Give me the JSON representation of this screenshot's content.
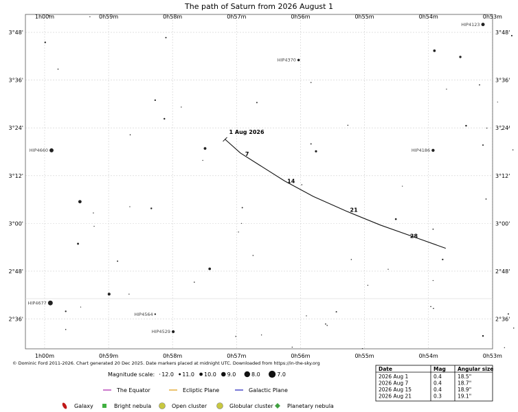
{
  "chart_data": {
    "type": "scatter",
    "title": "The path of Saturn from 2026 August 1",
    "x_axis": {
      "unit": "right ascension",
      "range_h": [
        1.005,
        0.8833
      ],
      "ticks": [
        {
          "value": 1.0,
          "label": "1h00m"
        },
        {
          "value": 0.98333,
          "label": "0h59m"
        },
        {
          "value": 0.96667,
          "label": "0h58m"
        },
        {
          "value": 0.95,
          "label": "0h57m"
        },
        {
          "value": 0.93333,
          "label": "0h56m"
        },
        {
          "value": 0.91667,
          "label": "0h55m"
        },
        {
          "value": 0.9,
          "label": "0h54m"
        },
        {
          "value": 0.88333,
          "label": "0h53m"
        }
      ]
    },
    "y_axis": {
      "unit": "declination (degrees)",
      "range": [
        2.475,
        3.875
      ],
      "ticks": [
        {
          "value": 3.8,
          "label": "3°48'"
        },
        {
          "value": 3.6,
          "label": "3°36'"
        },
        {
          "value": 3.4,
          "label": "3°24'"
        },
        {
          "value": 3.2,
          "label": "3°12'"
        },
        {
          "value": 3.0,
          "label": "3°00'"
        },
        {
          "value": 2.8,
          "label": "2°48'"
        },
        {
          "value": 2.6,
          "label": "2°36'"
        }
      ]
    },
    "grid": true,
    "path": {
      "name": "Saturn",
      "points": [
        {
          "ra_h": 0.953,
          "dec": 3.352
        },
        {
          "ra_h": 0.949,
          "dec": 3.295
        },
        {
          "ra_h": 0.944,
          "dec": 3.244
        },
        {
          "ra_h": 0.9375,
          "dec": 3.178
        },
        {
          "ra_h": 0.93,
          "dec": 3.113
        },
        {
          "ra_h": 0.9215,
          "dec": 3.052
        },
        {
          "ra_h": 0.9125,
          "dec": 2.993
        },
        {
          "ra_h": 0.903,
          "dec": 2.939
        },
        {
          "ra_h": 0.8955,
          "dec": 2.896
        }
      ],
      "date_markers": [
        {
          "label": "1 Aug 2026",
          "ra_h": 0.953,
          "dec": 3.352
        },
        {
          "label": "7",
          "ra_h": 0.949,
          "dec": 3.295
        },
        {
          "label": "14",
          "ra_h": 0.9375,
          "dec": 3.178
        },
        {
          "label": "21",
          "ra_h": 0.9215,
          "dec": 3.052
        },
        {
          "label": "28",
          "ra_h": 0.903,
          "dec": 2.939
        }
      ]
    },
    "stars": [
      {
        "ra_h": 0.99885,
        "dec": 3.87,
        "mag": 11.8
      },
      {
        "ra_h": 0.9882,
        "dec": 3.865,
        "mag": 11.9
      },
      {
        "ra_h": 0.9653,
        "dec": 3.861,
        "mag": 11.9
      },
      {
        "ra_h": 0.9684,
        "dec": 3.778,
        "mag": 11.5
      },
      {
        "ra_h": 0.99985,
        "dec": 3.758,
        "mag": 11.4
      },
      {
        "ra_h": 0.89845,
        "dec": 3.723,
        "mag": 10.6
      },
      {
        "ra_h": 0.8917,
        "dec": 3.697,
        "mag": 10.8
      },
      {
        "ra_h": 0.8858,
        "dec": 3.833,
        "mag": 9.9,
        "name": "HIP4123"
      },
      {
        "ra_h": 0.8783,
        "dec": 3.786,
        "mag": 11.5
      },
      {
        "ra_h": 0.8765,
        "dec": 3.77,
        "mag": 11.7
      },
      {
        "ra_h": 0.8747,
        "dec": 3.714,
        "mag": 12.0
      },
      {
        "ra_h": 0.9965,
        "dec": 3.646,
        "mag": 11.8
      },
      {
        "ra_h": 0.93383,
        "dec": 3.684,
        "mag": 10.7,
        "name": "HIP4370"
      },
      {
        "ra_h": 0.9306,
        "dec": 3.59,
        "mag": 11.8
      },
      {
        "ra_h": 0.8953,
        "dec": 3.562,
        "mag": 11.9
      },
      {
        "ra_h": 0.8867,
        "dec": 3.58,
        "mag": 11.7
      },
      {
        "ra_h": 0.9712,
        "dec": 3.516,
        "mag": 11.4
      },
      {
        "ra_h": 0.9644,
        "dec": 3.487,
        "mag": 11.9
      },
      {
        "ra_h": 0.9447,
        "dec": 3.506,
        "mag": 11.6
      },
      {
        "ra_h": 0.882,
        "dec": 3.508,
        "mag": 12.0
      },
      {
        "ra_h": 0.9688,
        "dec": 3.438,
        "mag": 11.3
      },
      {
        "ra_h": 0.921,
        "dec": 3.411,
        "mag": 11.8
      },
      {
        "ra_h": 0.8902,
        "dec": 3.409,
        "mag": 11.3
      },
      {
        "ra_h": 0.8848,
        "dec": 3.399,
        "mag": 11.9
      },
      {
        "ra_h": 0.881,
        "dec": 3.393,
        "mag": 11.9
      },
      {
        "ra_h": 0.879,
        "dec": 3.401,
        "mag": 11.8
      },
      {
        "ra_h": 0.9777,
        "dec": 3.371,
        "mag": 11.8
      },
      {
        "ra_h": 0.9982,
        "dec": 3.306,
        "mag": 9.4,
        "name": "HIP4660"
      },
      {
        "ra_h": 0.9582,
        "dec": 3.314,
        "mag": 10.5
      },
      {
        "ra_h": 0.9588,
        "dec": 3.264,
        "mag": 11.9
      },
      {
        "ra_h": 0.9306,
        "dec": 3.333,
        "mag": 11.6
      },
      {
        "ra_h": 0.9293,
        "dec": 3.302,
        "mag": 10.9
      },
      {
        "ra_h": 0.8858,
        "dec": 3.328,
        "mag": 11.5
      },
      {
        "ra_h": 0.8988,
        "dec": 3.306,
        "mag": 10.2,
        "name": "HIP4186"
      },
      {
        "ra_h": 0.878,
        "dec": 3.308,
        "mag": 11.8
      },
      {
        "ra_h": 0.8753,
        "dec": 3.269,
        "mag": 11.9
      },
      {
        "ra_h": 0.8748,
        "dec": 3.221,
        "mag": 10.6
      },
      {
        "ra_h": 0.933,
        "dec": 3.162,
        "mag": 11.8
      },
      {
        "ra_h": 0.9068,
        "dec": 3.156,
        "mag": 12.0
      },
      {
        "ra_h": 0.885,
        "dec": 3.102,
        "mag": 11.7
      },
      {
        "ra_h": 0.9908,
        "dec": 3.091,
        "mag": 10.0
      },
      {
        "ra_h": 0.9873,
        "dec": 3.044,
        "mag": 11.9
      },
      {
        "ra_h": 0.9778,
        "dec": 3.07,
        "mag": 11.9
      },
      {
        "ra_h": 0.9722,
        "dec": 3.063,
        "mag": 11.3
      },
      {
        "ra_h": 0.9871,
        "dec": 2.988,
        "mag": 11.9
      },
      {
        "ra_h": 0.9485,
        "dec": 3.066,
        "mag": 11.6
      },
      {
        "ra_h": 0.9487,
        "dec": 3.0,
        "mag": 12.0
      },
      {
        "ra_h": 0.9495,
        "dec": 2.964,
        "mag": 11.9
      },
      {
        "ra_h": 0.9085,
        "dec": 3.018,
        "mag": 11.2
      },
      {
        "ra_h": 0.8988,
        "dec": 2.976,
        "mag": 11.7
      },
      {
        "ra_h": 0.9913,
        "dec": 2.915,
        "mag": 11.1
      },
      {
        "ra_h": 0.9457,
        "dec": 2.866,
        "mag": 11.8
      },
      {
        "ra_h": 0.9201,
        "dec": 2.849,
        "mag": 11.8
      },
      {
        "ra_h": 0.8963,
        "dec": 2.849,
        "mag": 11.4
      },
      {
        "ra_h": 0.981,
        "dec": 2.842,
        "mag": 11.6
      },
      {
        "ra_h": 0.957,
        "dec": 2.81,
        "mag": 10.6
      },
      {
        "ra_h": 0.9105,
        "dec": 2.808,
        "mag": 11.9
      },
      {
        "ra_h": 0.8745,
        "dec": 2.779,
        "mag": 11.6
      },
      {
        "ra_h": 0.961,
        "dec": 2.754,
        "mag": 11.8
      },
      {
        "ra_h": 0.9158,
        "dec": 2.741,
        "mag": 11.9
      },
      {
        "ra_h": 0.8988,
        "dec": 2.761,
        "mag": 11.9
      },
      {
        "ra_h": 0.9832,
        "dec": 2.704,
        "mag": 10.4
      },
      {
        "ra_h": 0.978,
        "dec": 2.704,
        "mag": 11.9
      },
      {
        "ra_h": 0.9985,
        "dec": 2.667,
        "mag": 8.8,
        "name": "HIP4677"
      },
      {
        "ra_h": 0.9945,
        "dec": 2.632,
        "mag": 11.4
      },
      {
        "ra_h": 0.9906,
        "dec": 2.65,
        "mag": 12.0
      },
      {
        "ra_h": 0.9712,
        "dec": 2.62,
        "mag": 11.3,
        "name": "HIP4564"
      },
      {
        "ra_h": 0.924,
        "dec": 2.63,
        "mag": 11.6
      },
      {
        "ra_h": 0.9318,
        "dec": 2.613,
        "mag": 11.9
      },
      {
        "ra_h": 0.8994,
        "dec": 2.652,
        "mag": 11.8
      },
      {
        "ra_h": 0.8987,
        "dec": 2.644,
        "mag": 11.8
      },
      {
        "ra_h": 0.8792,
        "dec": 2.621,
        "mag": 11.6
      },
      {
        "ra_h": 0.9268,
        "dec": 2.579,
        "mag": 11.7
      },
      {
        "ra_h": 0.9264,
        "dec": 2.573,
        "mag": 11.8
      },
      {
        "ra_h": 0.8778,
        "dec": 2.562,
        "mag": 11.8
      },
      {
        "ra_h": 0.875,
        "dec": 2.562,
        "mag": 11.8
      },
      {
        "ra_h": 0.9945,
        "dec": 2.556,
        "mag": 11.8
      },
      {
        "ra_h": 0.9665,
        "dec": 2.547,
        "mag": 10.3,
        "name": "HIP4529"
      },
      {
        "ra_h": 0.9502,
        "dec": 2.527,
        "mag": 11.8
      },
      {
        "ra_h": 0.9435,
        "dec": 2.533,
        "mag": 11.9
      },
      {
        "ra_h": 0.8858,
        "dec": 2.529,
        "mag": 11.3
      },
      {
        "ra_h": 0.9355,
        "dec": 2.482,
        "mag": 11.9
      },
      {
        "ra_h": 0.9172,
        "dec": 2.476,
        "mag": 11.9
      },
      {
        "ra_h": 0.8802,
        "dec": 2.48,
        "mag": 11.9
      }
    ],
    "ecliptic_line_dec": 2.685
  },
  "footer": {
    "credit": "© Dominic Ford 2011-2026. Chart generated 20 Dec 2025. Date markers placed at midnight UTC. Downloaded from https://in-the-sky.org"
  },
  "legend": {
    "magnitude_label": "Magnitude scale:",
    "magnitude_scale": [
      "12.0",
      "11.0",
      "10.0",
      "9.0",
      "8.0",
      "7.0"
    ],
    "lines": [
      {
        "label": "The Equator",
        "color": "#b030b0"
      },
      {
        "label": "Ecliptic Plane",
        "color": "#e0a020"
      },
      {
        "label": "Galactic Plane",
        "color": "#3030c0"
      }
    ],
    "objects": [
      {
        "label": "Galaxy",
        "icon": "galaxy-icon",
        "color": "#c01818"
      },
      {
        "label": "Bright nebula",
        "icon": "bright-nebula-icon",
        "color": "#40b040"
      },
      {
        "label": "Open cluster",
        "icon": "open-cluster-icon",
        "color": "#c8c840"
      },
      {
        "label": "Globular cluster",
        "icon": "globular-cluster-icon",
        "color": "#c8c840"
      },
      {
        "label": "Planetary nebula",
        "icon": "planetary-nebula-icon",
        "color": "#40a040"
      }
    ]
  },
  "table": {
    "headers": [
      "Date",
      "Mag",
      "Angular size"
    ],
    "rows": [
      [
        "2026 Aug 1",
        "0.4",
        "18.5\""
      ],
      [
        "2026 Aug 7",
        "0.4",
        "18.7\""
      ],
      [
        "2026 Aug 15",
        "0.4",
        "18.9\""
      ],
      [
        "2026 Aug 21",
        "0.3",
        "19.1\""
      ]
    ]
  }
}
